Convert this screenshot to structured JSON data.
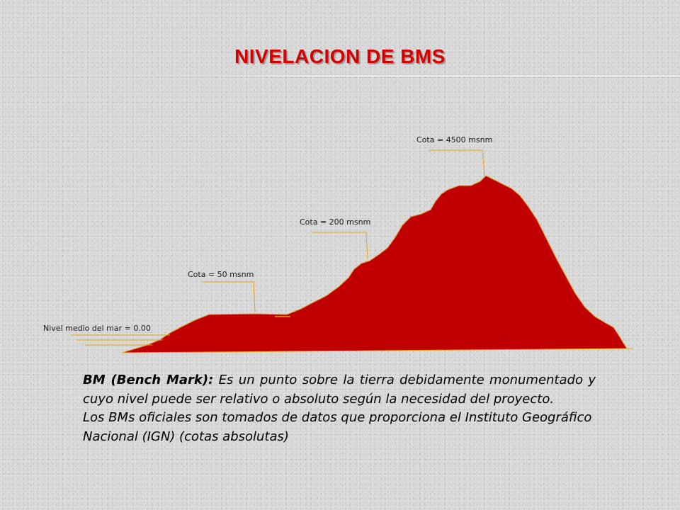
{
  "slide": {
    "title": "NIVELACION DE BMS"
  },
  "diagram": {
    "mountain_color": "#c00000",
    "leader_color": "#e3a21a",
    "labels": {
      "sea_level": "Nivel medio del mar = 0.00",
      "cota_50": "Cota = 50 msnm",
      "cota_200": "Cota = 200 msnm",
      "cota_4500": "Cota = 4500 msnm"
    }
  },
  "body": {
    "definition_term": "BM (Bench Mark):",
    "definition_text": " Es un punto sobre la tierra debidamente monumentado y cuyo nivel puede ser relativo o absoluto según la necesidad del proyecto.",
    "official_text": "Los BMs oficiales son tomados de datos que proporciona el Instituto Geográfico Nacional (IGN) (cotas absolutas)"
  }
}
